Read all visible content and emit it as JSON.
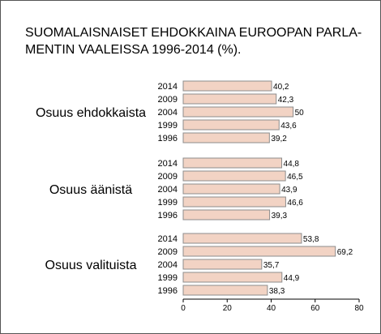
{
  "chart_data": {
    "type": "bar",
    "orientation": "horizontal",
    "title": "SUOMALAISNAISET EHDOKKAINA EUROOPAN PARLA-\nMENTIN VAALEISSA 1996-2014 (%).",
    "xlim": [
      0,
      80
    ],
    "x_ticks": [
      "0",
      "20",
      "40",
      "60",
      "80"
    ],
    "grid": false,
    "legend": "none",
    "bar_color": "#f2d3c4",
    "bar_edge_color": "#8c8c8c",
    "groups": [
      {
        "label": "Osuus ehdokkaista",
        "bars": [
          {
            "year": "2014",
            "value": 40.2,
            "label": "40,2"
          },
          {
            "year": "2009",
            "value": 42.3,
            "label": "42,3"
          },
          {
            "year": "2004",
            "value": 50,
            "label": "50"
          },
          {
            "year": "1999",
            "value": 43.6,
            "label": "43,6"
          },
          {
            "year": "1996",
            "value": 39.2,
            "label": "39,2"
          }
        ]
      },
      {
        "label": "Osuus äänistä",
        "bars": [
          {
            "year": "2014",
            "value": 44.8,
            "label": "44,8"
          },
          {
            "year": "2009",
            "value": 46.5,
            "label": "46,5"
          },
          {
            "year": "2004",
            "value": 43.9,
            "label": "43,9"
          },
          {
            "year": "1999",
            "value": 46.6,
            "label": "46,6"
          },
          {
            "year": "1996",
            "value": 39.3,
            "label": "39,3"
          }
        ]
      },
      {
        "label": "Osuus valituista",
        "bars": [
          {
            "year": "2014",
            "value": 53.8,
            "label": "53,8"
          },
          {
            "year": "2009",
            "value": 69.2,
            "label": "69,2"
          },
          {
            "year": "2004",
            "value": 35.7,
            "label": "35,7"
          },
          {
            "year": "1999",
            "value": 44.9,
            "label": "44,9"
          },
          {
            "year": "1996",
            "value": 38.3,
            "label": "38,3"
          }
        ]
      }
    ]
  }
}
